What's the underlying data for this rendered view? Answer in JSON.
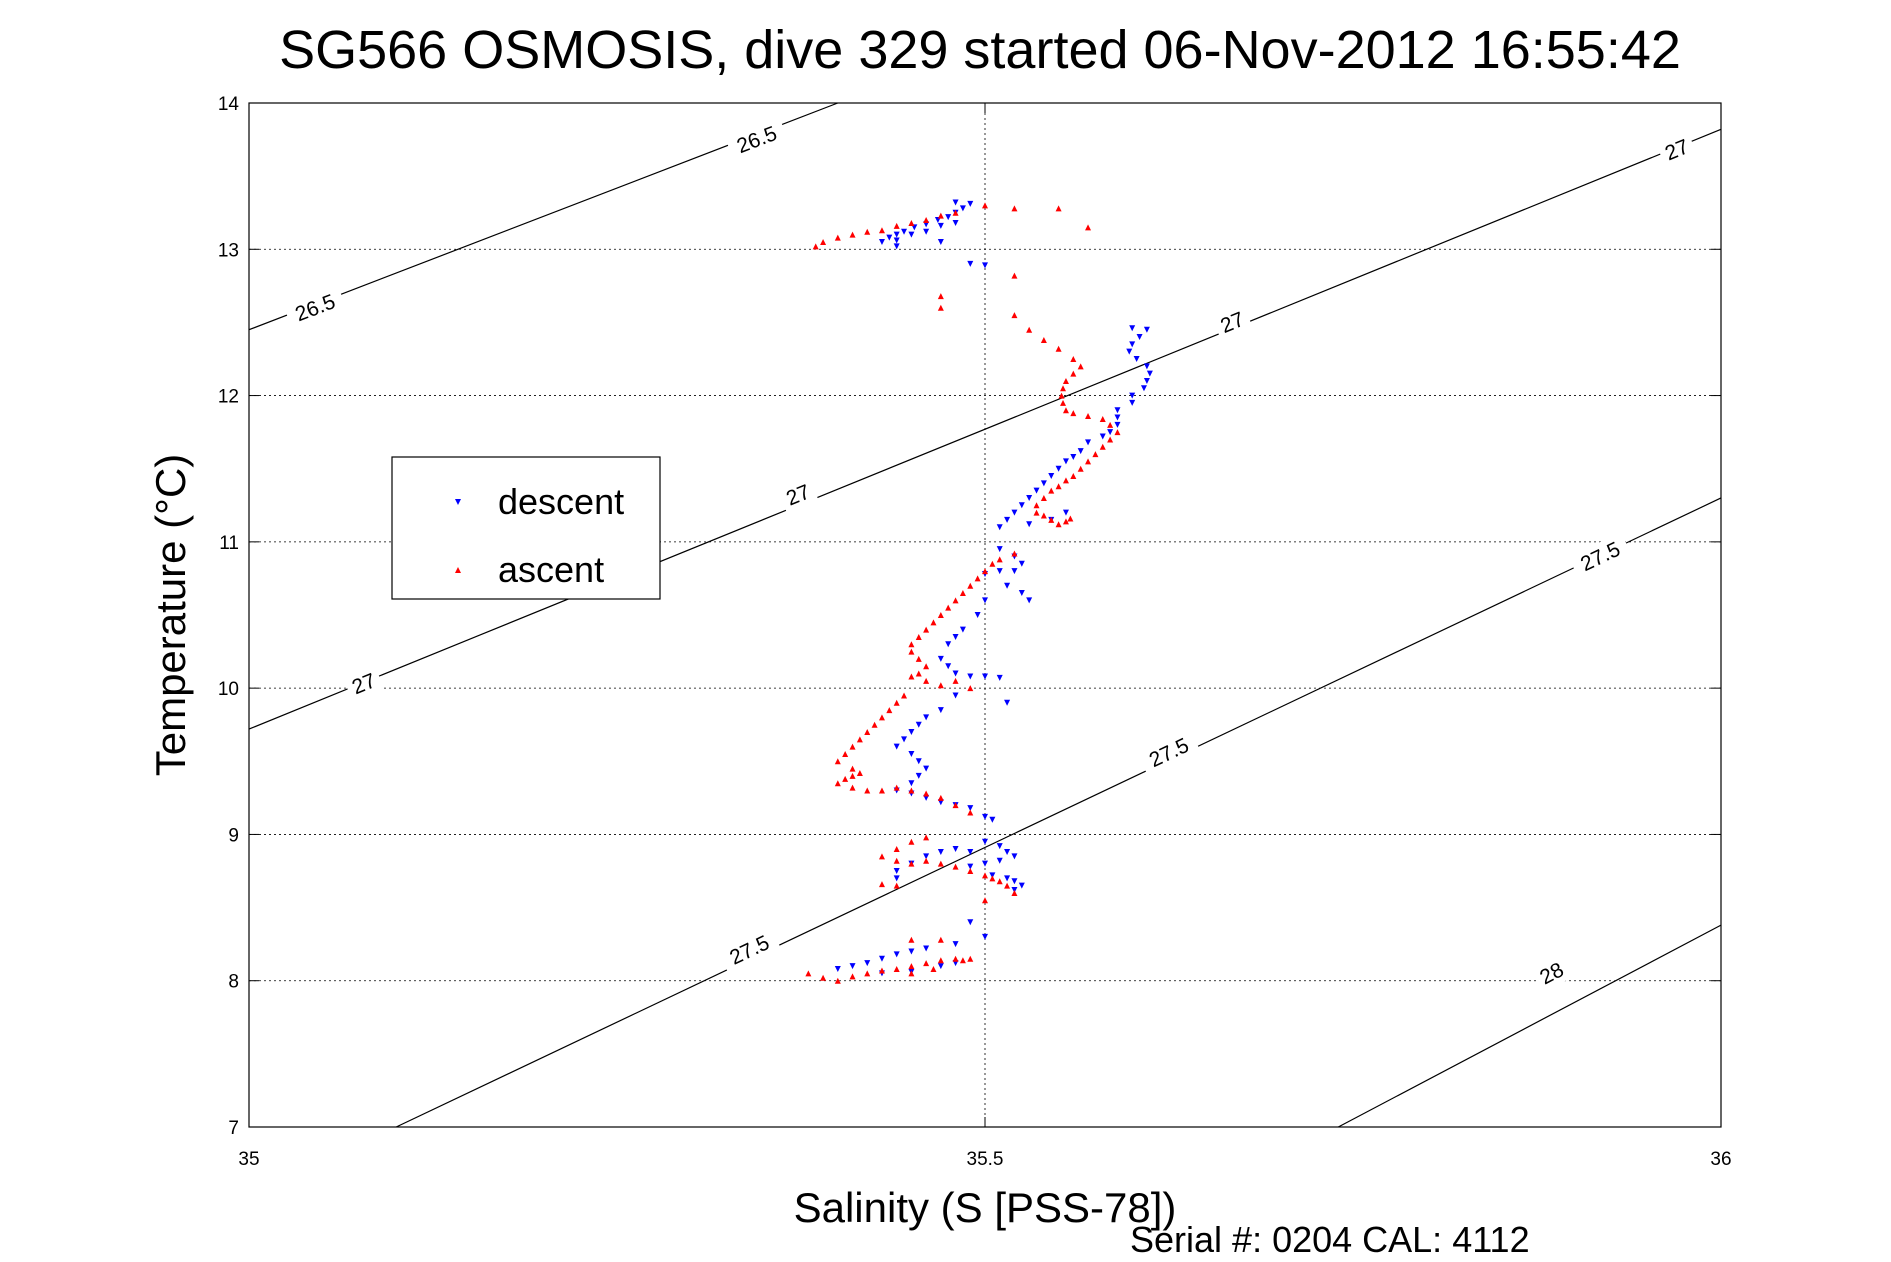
{
  "chart_data": {
    "type": "scatter",
    "title": "SG566 OSMOSIS, dive 329 started 06-Nov-2012 16:55:42",
    "xlabel": "Salinity (S [PSS-78])",
    "ylabel": "Temperature (°C)",
    "xlim": [
      35,
      36
    ],
    "ylim": [
      7,
      14
    ],
    "xticks": [
      35,
      35.5,
      36
    ],
    "xtick_labels": [
      "35",
      "35.5",
      "36"
    ],
    "yticks": [
      7,
      8,
      9,
      10,
      11,
      12,
      13,
      14
    ],
    "ytick_labels": [
      "7",
      "8",
      "9",
      "10",
      "11",
      "12",
      "13",
      "14"
    ],
    "grid": true,
    "footer": "Serial #: 0204  CAL: 4112",
    "legend": {
      "placement": "left",
      "entries": [
        {
          "label": "descent",
          "color": "#0000ff",
          "marker": "triangle-down"
        },
        {
          "label": "ascent",
          "color": "#ff0000",
          "marker": "triangle-up"
        }
      ]
    },
    "contours": [
      {
        "level": "26.5",
        "points": [
          [
            35.0,
            12.45
          ],
          [
            35.4,
            14.0
          ]
        ],
        "labels": [
          [
            35.045,
            12.6
          ],
          [
            35.345,
            13.75
          ]
        ]
      },
      {
        "level": "27",
        "points": [
          [
            35.0,
            9.72
          ],
          [
            36.0,
            13.82
          ]
        ],
        "labels": [
          [
            35.078,
            10.03
          ],
          [
            35.373,
            11.32
          ],
          [
            35.668,
            12.5
          ],
          [
            35.97,
            13.68
          ]
        ]
      },
      {
        "level": "27.5",
        "points": [
          [
            35.1,
            7.0
          ],
          [
            36.0,
            11.3
          ]
        ],
        "labels": [
          [
            35.34,
            8.21
          ],
          [
            35.625,
            9.56
          ],
          [
            35.918,
            10.9
          ]
        ]
      },
      {
        "level": "28",
        "points": [
          [
            35.74,
            7.0
          ],
          [
            36.0,
            8.38
          ]
        ],
        "labels": [
          [
            35.885,
            8.05
          ]
        ]
      }
    ],
    "series": [
      {
        "name": "descent",
        "color": "#0000ff",
        "marker": "triangle-down",
        "points": [
          [
            35.48,
            13.32
          ],
          [
            35.49,
            13.31
          ],
          [
            35.485,
            13.28
          ],
          [
            35.48,
            13.25
          ],
          [
            35.475,
            13.22
          ],
          [
            35.468,
            13.2
          ],
          [
            35.46,
            13.17
          ],
          [
            35.452,
            13.15
          ],
          [
            35.445,
            13.12
          ],
          [
            35.44,
            13.1
          ],
          [
            35.435,
            13.08
          ],
          [
            35.43,
            13.05
          ],
          [
            35.44,
            13.06
          ],
          [
            35.45,
            13.1
          ],
          [
            35.46,
            13.12
          ],
          [
            35.47,
            13.16
          ],
          [
            35.48,
            13.18
          ],
          [
            35.49,
            12.9
          ],
          [
            35.5,
            12.89
          ],
          [
            35.47,
            13.05
          ],
          [
            35.44,
            13.02
          ],
          [
            35.6,
            12.46
          ],
          [
            35.61,
            12.45
          ],
          [
            35.605,
            12.4
          ],
          [
            35.6,
            12.35
          ],
          [
            35.598,
            12.3
          ],
          [
            35.603,
            12.25
          ],
          [
            35.61,
            12.2
          ],
          [
            35.612,
            12.15
          ],
          [
            35.61,
            12.1
          ],
          [
            35.608,
            12.05
          ],
          [
            35.6,
            12.0
          ],
          [
            35.6,
            11.95
          ],
          [
            35.59,
            11.9
          ],
          [
            35.59,
            11.85
          ],
          [
            35.59,
            11.8
          ],
          [
            35.585,
            11.75
          ],
          [
            35.58,
            11.72
          ],
          [
            35.57,
            11.68
          ],
          [
            35.565,
            11.62
          ],
          [
            35.56,
            11.58
          ],
          [
            35.555,
            11.55
          ],
          [
            35.55,
            11.5
          ],
          [
            35.545,
            11.45
          ],
          [
            35.54,
            11.4
          ],
          [
            35.535,
            11.35
          ],
          [
            35.53,
            11.3
          ],
          [
            35.525,
            11.25
          ],
          [
            35.52,
            11.2
          ],
          [
            35.515,
            11.15
          ],
          [
            35.51,
            11.1
          ],
          [
            35.53,
            11.12
          ],
          [
            35.545,
            11.15
          ],
          [
            35.555,
            11.2
          ],
          [
            35.51,
            10.95
          ],
          [
            35.52,
            10.9
          ],
          [
            35.525,
            10.85
          ],
          [
            35.52,
            10.8
          ],
          [
            35.51,
            10.8
          ],
          [
            35.5,
            10.78
          ],
          [
            35.515,
            10.7
          ],
          [
            35.525,
            10.65
          ],
          [
            35.53,
            10.6
          ],
          [
            35.5,
            10.6
          ],
          [
            35.495,
            10.5
          ],
          [
            35.485,
            10.4
          ],
          [
            35.48,
            10.35
          ],
          [
            35.475,
            10.3
          ],
          [
            35.47,
            10.2
          ],
          [
            35.475,
            10.15
          ],
          [
            35.48,
            10.1
          ],
          [
            35.49,
            10.08
          ],
          [
            35.5,
            10.08
          ],
          [
            35.51,
            10.07
          ],
          [
            35.515,
            9.9
          ],
          [
            35.48,
            9.95
          ],
          [
            35.47,
            9.85
          ],
          [
            35.46,
            9.8
          ],
          [
            35.455,
            9.75
          ],
          [
            35.45,
            9.7
          ],
          [
            35.445,
            9.65
          ],
          [
            35.44,
            9.6
          ],
          [
            35.45,
            9.55
          ],
          [
            35.455,
            9.5
          ],
          [
            35.46,
            9.45
          ],
          [
            35.455,
            9.4
          ],
          [
            35.45,
            9.35
          ],
          [
            35.44,
            9.3
          ],
          [
            35.45,
            9.28
          ],
          [
            35.46,
            9.25
          ],
          [
            35.47,
            9.22
          ],
          [
            35.48,
            9.2
          ],
          [
            35.49,
            9.18
          ],
          [
            35.5,
            9.12
          ],
          [
            35.505,
            9.1
          ],
          [
            35.5,
            8.95
          ],
          [
            35.51,
            8.92
          ],
          [
            35.515,
            8.88
          ],
          [
            35.52,
            8.85
          ],
          [
            35.51,
            8.82
          ],
          [
            35.5,
            8.8
          ],
          [
            35.49,
            8.78
          ],
          [
            35.505,
            8.72
          ],
          [
            35.515,
            8.7
          ],
          [
            35.52,
            8.68
          ],
          [
            35.525,
            8.65
          ],
          [
            35.52,
            8.62
          ],
          [
            35.49,
            8.88
          ],
          [
            35.48,
            8.9
          ],
          [
            35.47,
            8.88
          ],
          [
            35.46,
            8.85
          ],
          [
            35.45,
            8.8
          ],
          [
            35.44,
            8.75
          ],
          [
            35.44,
            8.7
          ],
          [
            35.49,
            8.4
          ],
          [
            35.5,
            8.3
          ],
          [
            35.48,
            8.25
          ],
          [
            35.46,
            8.22
          ],
          [
            35.45,
            8.2
          ],
          [
            35.44,
            8.18
          ],
          [
            35.43,
            8.15
          ],
          [
            35.42,
            8.12
          ],
          [
            35.41,
            8.1
          ],
          [
            35.4,
            8.08
          ],
          [
            35.43,
            8.05
          ],
          [
            35.45,
            8.06
          ],
          [
            35.47,
            8.1
          ],
          [
            35.48,
            8.12
          ]
        ]
      },
      {
        "name": "ascent",
        "color": "#ff0000",
        "marker": "triangle-up",
        "points": [
          [
            35.48,
            13.25
          ],
          [
            35.47,
            13.23
          ],
          [
            35.46,
            13.2
          ],
          [
            35.45,
            13.18
          ],
          [
            35.44,
            13.16
          ],
          [
            35.43,
            13.13
          ],
          [
            35.42,
            13.12
          ],
          [
            35.41,
            13.1
          ],
          [
            35.4,
            13.08
          ],
          [
            35.39,
            13.05
          ],
          [
            35.385,
            13.02
          ],
          [
            35.5,
            13.3
          ],
          [
            35.52,
            13.28
          ],
          [
            35.55,
            13.28
          ],
          [
            35.57,
            13.15
          ],
          [
            35.52,
            12.82
          ],
          [
            35.47,
            12.6
          ],
          [
            35.47,
            12.68
          ],
          [
            35.52,
            12.55
          ],
          [
            35.53,
            12.45
          ],
          [
            35.54,
            12.38
          ],
          [
            35.55,
            12.32
          ],
          [
            35.56,
            12.25
          ],
          [
            35.565,
            12.2
          ],
          [
            35.56,
            12.15
          ],
          [
            35.555,
            12.1
          ],
          [
            35.553,
            12.05
          ],
          [
            35.552,
            12.0
          ],
          [
            35.553,
            11.95
          ],
          [
            35.555,
            11.9
          ],
          [
            35.56,
            11.88
          ],
          [
            35.57,
            11.86
          ],
          [
            35.58,
            11.84
          ],
          [
            35.585,
            11.8
          ],
          [
            35.59,
            11.75
          ],
          [
            35.585,
            11.7
          ],
          [
            35.58,
            11.65
          ],
          [
            35.575,
            11.6
          ],
          [
            35.57,
            11.55
          ],
          [
            35.565,
            11.5
          ],
          [
            35.56,
            11.45
          ],
          [
            35.555,
            11.42
          ],
          [
            35.55,
            11.38
          ],
          [
            35.545,
            11.35
          ],
          [
            35.54,
            11.3
          ],
          [
            35.535,
            11.25
          ],
          [
            35.535,
            11.2
          ],
          [
            35.54,
            11.18
          ],
          [
            35.545,
            11.15
          ],
          [
            35.55,
            11.12
          ],
          [
            35.555,
            11.14
          ],
          [
            35.558,
            11.16
          ],
          [
            35.52,
            10.92
          ],
          [
            35.51,
            10.88
          ],
          [
            35.505,
            10.85
          ],
          [
            35.5,
            10.8
          ],
          [
            35.495,
            10.75
          ],
          [
            35.49,
            10.7
          ],
          [
            35.485,
            10.65
          ],
          [
            35.48,
            10.6
          ],
          [
            35.475,
            10.55
          ],
          [
            35.47,
            10.5
          ],
          [
            35.465,
            10.45
          ],
          [
            35.46,
            10.4
          ],
          [
            35.455,
            10.35
          ],
          [
            35.45,
            10.3
          ],
          [
            35.45,
            10.25
          ],
          [
            35.455,
            10.2
          ],
          [
            35.46,
            10.15
          ],
          [
            35.455,
            10.1
          ],
          [
            35.45,
            10.08
          ],
          [
            35.46,
            10.05
          ],
          [
            35.47,
            10.02
          ],
          [
            35.48,
            10.05
          ],
          [
            35.49,
            10.0
          ],
          [
            35.445,
            9.95
          ],
          [
            35.44,
            9.9
          ],
          [
            35.435,
            9.85
          ],
          [
            35.43,
            9.8
          ],
          [
            35.425,
            9.75
          ],
          [
            35.42,
            9.7
          ],
          [
            35.415,
            9.65
          ],
          [
            35.41,
            9.6
          ],
          [
            35.405,
            9.55
          ],
          [
            35.4,
            9.5
          ],
          [
            35.41,
            9.45
          ],
          [
            35.415,
            9.42
          ],
          [
            35.41,
            9.4
          ],
          [
            35.405,
            9.38
          ],
          [
            35.4,
            9.35
          ],
          [
            35.41,
            9.32
          ],
          [
            35.42,
            9.3
          ],
          [
            35.43,
            9.3
          ],
          [
            35.44,
            9.32
          ],
          [
            35.45,
            9.3
          ],
          [
            35.46,
            9.28
          ],
          [
            35.47,
            9.25
          ],
          [
            35.48,
            9.2
          ],
          [
            35.49,
            9.15
          ],
          [
            35.46,
            8.98
          ],
          [
            35.45,
            8.95
          ],
          [
            35.44,
            8.9
          ],
          [
            35.43,
            8.85
          ],
          [
            35.44,
            8.82
          ],
          [
            35.45,
            8.8
          ],
          [
            35.46,
            8.82
          ],
          [
            35.47,
            8.8
          ],
          [
            35.48,
            8.78
          ],
          [
            35.49,
            8.75
          ],
          [
            35.5,
            8.72
          ],
          [
            35.505,
            8.7
          ],
          [
            35.51,
            8.68
          ],
          [
            35.515,
            8.65
          ],
          [
            35.52,
            8.6
          ],
          [
            35.5,
            8.55
          ],
          [
            35.43,
            8.66
          ],
          [
            35.44,
            8.65
          ],
          [
            35.45,
            8.28
          ],
          [
            35.47,
            8.28
          ],
          [
            35.48,
            8.15
          ],
          [
            35.47,
            8.14
          ],
          [
            35.46,
            8.12
          ],
          [
            35.45,
            8.1
          ],
          [
            35.44,
            8.08
          ],
          [
            35.43,
            8.07
          ],
          [
            35.42,
            8.05
          ],
          [
            35.41,
            8.03
          ],
          [
            35.4,
            8.0
          ],
          [
            35.39,
            8.02
          ],
          [
            35.38,
            8.05
          ],
          [
            35.45,
            8.05
          ],
          [
            35.465,
            8.08
          ],
          [
            35.485,
            8.14
          ],
          [
            35.49,
            8.15
          ]
        ]
      }
    ]
  }
}
